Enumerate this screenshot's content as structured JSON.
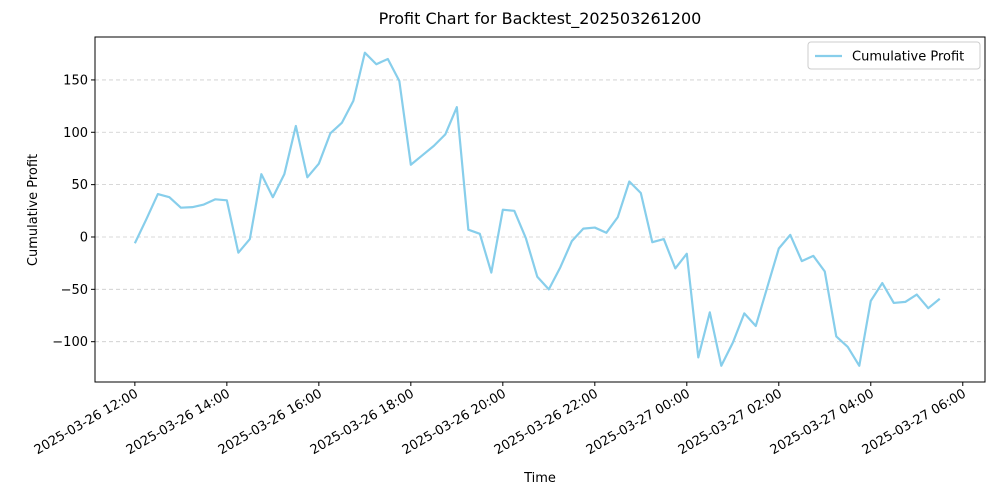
{
  "chart_data": {
    "type": "line",
    "title": "Profit Chart for Backtest_202503261200",
    "x_label": "Time",
    "y_label": "Cumulative Profit",
    "x": [
      "2025-03-26 12:00",
      "2025-03-26 12:15",
      "2025-03-26 12:30",
      "2025-03-26 12:45",
      "2025-03-26 13:00",
      "2025-03-26 13:15",
      "2025-03-26 13:30",
      "2025-03-26 13:45",
      "2025-03-26 14:00",
      "2025-03-26 14:15",
      "2025-03-26 14:30",
      "2025-03-26 14:45",
      "2025-03-26 15:00",
      "2025-03-26 15:15",
      "2025-03-26 15:30",
      "2025-03-26 15:45",
      "2025-03-26 16:00",
      "2025-03-26 16:15",
      "2025-03-26 16:30",
      "2025-03-26 16:45",
      "2025-03-26 17:00",
      "2025-03-26 17:15",
      "2025-03-26 17:30",
      "2025-03-26 17:45",
      "2025-03-26 18:00",
      "2025-03-26 18:15",
      "2025-03-26 18:30",
      "2025-03-26 18:45",
      "2025-03-26 19:00",
      "2025-03-26 19:15",
      "2025-03-26 19:30",
      "2025-03-26 19:45",
      "2025-03-26 20:00",
      "2025-03-26 20:15",
      "2025-03-26 20:30",
      "2025-03-26 20:45",
      "2025-03-26 21:00",
      "2025-03-26 21:15",
      "2025-03-26 21:30",
      "2025-03-26 21:45",
      "2025-03-26 22:00",
      "2025-03-26 22:15",
      "2025-03-26 22:30",
      "2025-03-26 22:45",
      "2025-03-26 23:00",
      "2025-03-26 23:15",
      "2025-03-26 23:30",
      "2025-03-26 23:45",
      "2025-03-27 00:00",
      "2025-03-27 00:15",
      "2025-03-27 00:30",
      "2025-03-27 00:45",
      "2025-03-27 01:00",
      "2025-03-27 01:15",
      "2025-03-27 01:30",
      "2025-03-27 01:45",
      "2025-03-27 02:00",
      "2025-03-27 02:15",
      "2025-03-27 02:30",
      "2025-03-27 02:45",
      "2025-03-27 03:00",
      "2025-03-27 03:15",
      "2025-03-27 03:30",
      "2025-03-27 03:45",
      "2025-03-27 04:00",
      "2025-03-27 04:15",
      "2025-03-27 04:30",
      "2025-03-27 04:45",
      "2025-03-27 05:00",
      "2025-03-27 05:15",
      "2025-03-27 05:30"
    ],
    "series": [
      {
        "name": "Cumulative Profit",
        "color": "#87ceeb",
        "values": [
          -6,
          17,
          41,
          38,
          28,
          28.5,
          31,
          36,
          35,
          -15,
          -2,
          60,
          38,
          60,
          106,
          57,
          70,
          99,
          109,
          130,
          176,
          165,
          170,
          149,
          69,
          78,
          87,
          98,
          124,
          7,
          3,
          -34,
          26,
          25,
          -1,
          -38,
          -50,
          -29,
          -4,
          8,
          9,
          4,
          19,
          53,
          42,
          -5,
          -2,
          -30,
          -16,
          -115,
          -72,
          -123,
          -101,
          -73,
          -85,
          -48,
          -11,
          2,
          -23,
          -18,
          -33,
          -95,
          -105,
          -123,
          -61,
          -44,
          -63,
          -62,
          -55,
          -68,
          -59
        ]
      }
    ],
    "xlim": [
      "2025-03-26 11:08",
      "2025-03-27 06:29"
    ],
    "xticks": [
      "2025-03-26 12:00",
      "2025-03-26 14:00",
      "2025-03-26 16:00",
      "2025-03-26 18:00",
      "2025-03-26 20:00",
      "2025-03-26 22:00",
      "2025-03-27 00:00",
      "2025-03-27 02:00",
      "2025-03-27 04:00",
      "2025-03-27 06:00"
    ],
    "ylim": [
      -138.5,
      191
    ],
    "yticks": [
      {
        "value": -100,
        "label": "−100"
      },
      {
        "value": -50,
        "label": "−50"
      },
      0,
      50,
      100,
      150
    ],
    "grid": true,
    "legend": "upper right"
  }
}
